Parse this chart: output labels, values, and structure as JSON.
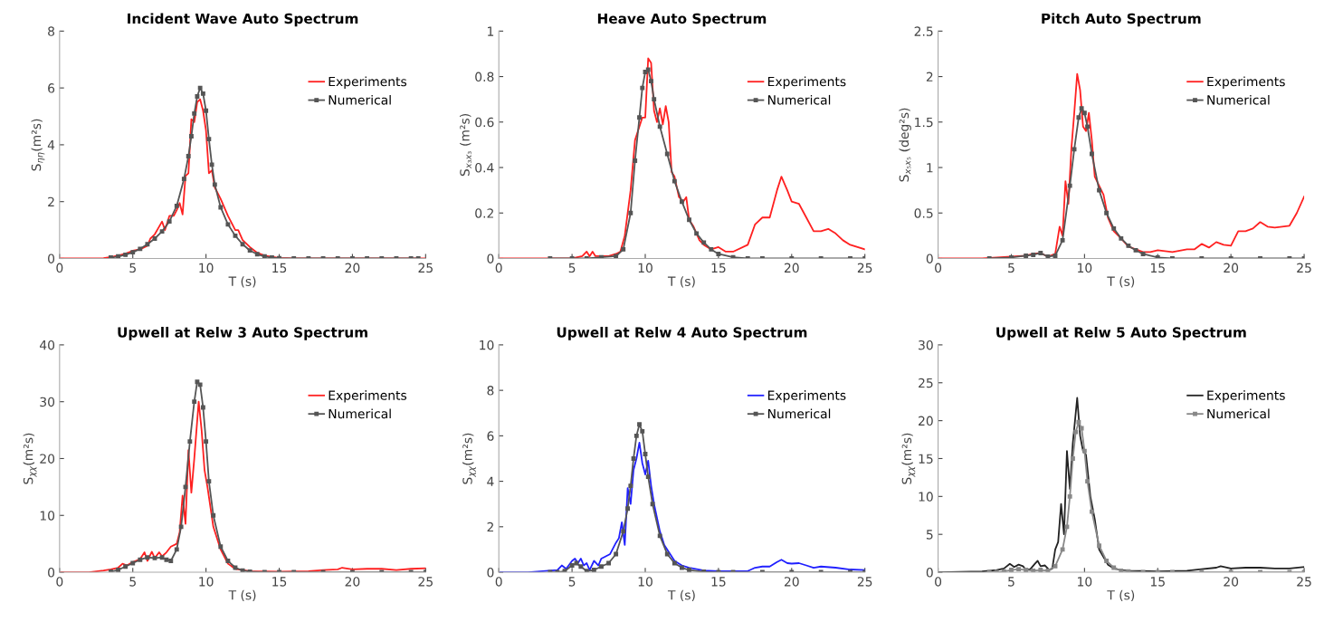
{
  "chart_data": [
    {
      "type": "line",
      "title": "Incident Wave Auto Spectrum",
      "xlabel": "T (s)",
      "ylabel": "S$_{ηη}$(m²s)",
      "xlim": [
        0,
        25
      ],
      "xticks": [
        0,
        5,
        10,
        15,
        20,
        25
      ],
      "ylim": [
        0,
        8
      ],
      "yticks": [
        0,
        2,
        4,
        6,
        8
      ],
      "grid": false,
      "legend": "top right",
      "series": [
        {
          "name": "Experiments",
          "color": "#ff2020",
          "marker": "none",
          "x": [
            0,
            2,
            3,
            3.5,
            4,
            4.5,
            5,
            5.5,
            6,
            6.2,
            6.5,
            7,
            7.2,
            7.5,
            7.8,
            8,
            8.2,
            8.4,
            8.6,
            8.8,
            9,
            9.2,
            9.4,
            9.6,
            9.8,
            10,
            10.2,
            10.4,
            10.6,
            11,
            11.5,
            12,
            12.2,
            12.5,
            13,
            13.5,
            14,
            15,
            16,
            18,
            20,
            25
          ],
          "values": [
            0,
            0,
            0.01,
            0.05,
            0.1,
            0.17,
            0.27,
            0.32,
            0.45,
            0.7,
            0.85,
            1.3,
            1.0,
            1.5,
            1.5,
            1.7,
            1.95,
            1.55,
            2.9,
            3.0,
            4.9,
            4.8,
            5.5,
            5.6,
            5.2,
            4.5,
            3.0,
            3.1,
            2.5,
            2.1,
            1.5,
            1.0,
            1.0,
            0.65,
            0.4,
            0.2,
            0.1,
            0.02,
            0,
            0,
            0,
            0
          ]
        },
        {
          "name": "Numerical",
          "color": "#555555",
          "marker": "square",
          "x": [
            3.5,
            4,
            4.5,
            5,
            5.5,
            6,
            6.5,
            7,
            7.5,
            8,
            8.5,
            8.8,
            9,
            9.2,
            9.4,
            9.6,
            9.8,
            10,
            10.2,
            10.4,
            10.6,
            11,
            11.5,
            12,
            12.5,
            13,
            13.5,
            14,
            14.5,
            15,
            16,
            17,
            18,
            19,
            20,
            21,
            22,
            23,
            24,
            24.5
          ],
          "values": [
            0.03,
            0.07,
            0.13,
            0.22,
            0.34,
            0.5,
            0.7,
            0.95,
            1.3,
            1.85,
            2.8,
            3.6,
            4.3,
            5.1,
            5.7,
            6.0,
            5.8,
            5.2,
            4.2,
            3.3,
            2.6,
            1.8,
            1.2,
            0.8,
            0.5,
            0.28,
            0.15,
            0.07,
            0.03,
            0.01,
            0,
            0,
            0,
            0,
            0,
            0,
            0,
            0,
            0,
            0
          ]
        }
      ]
    },
    {
      "type": "line",
      "title": "Heave Auto Spectrum",
      "xlabel": "T (s)",
      "ylabel": "S$_{x₃x₃}$ (m²s)",
      "xlim": [
        0,
        25
      ],
      "xticks": [
        0,
        5,
        10,
        15,
        20,
        25
      ],
      "ylim": [
        0,
        1
      ],
      "yticks": [
        0,
        0.2,
        0.4,
        0.6,
        0.8,
        1
      ],
      "grid": false,
      "legend": "top right",
      "series": [
        {
          "name": "Experiments",
          "color": "#ff2020",
          "marker": "none",
          "x": [
            0,
            5,
            5.7,
            6,
            6.2,
            6.4,
            6.6,
            7,
            7.5,
            8,
            8.3,
            8.6,
            9,
            9.3,
            9.6,
            9.8,
            10,
            10.2,
            10.4,
            10.6,
            10.8,
            11,
            11.2,
            11.4,
            11.6,
            11.8,
            12,
            12.3,
            12.6,
            12.8,
            13,
            13.3,
            13.7,
            14,
            14.5,
            15,
            15.5,
            16,
            17,
            17.5,
            18,
            18.5,
            19,
            19.3,
            19.7,
            20,
            20.5,
            21,
            21.5,
            22,
            22.5,
            23,
            23.5,
            24,
            25
          ],
          "values": [
            0,
            0,
            0.01,
            0.03,
            0.01,
            0.03,
            0.01,
            0.01,
            0.01,
            0.02,
            0.03,
            0.1,
            0.3,
            0.52,
            0.58,
            0.62,
            0.62,
            0.88,
            0.86,
            0.65,
            0.6,
            0.66,
            0.59,
            0.67,
            0.6,
            0.38,
            0.36,
            0.27,
            0.25,
            0.27,
            0.17,
            0.14,
            0.08,
            0.06,
            0.04,
            0.05,
            0.03,
            0.03,
            0.06,
            0.15,
            0.18,
            0.18,
            0.3,
            0.36,
            0.3,
            0.25,
            0.24,
            0.18,
            0.12,
            0.12,
            0.13,
            0.11,
            0.08,
            0.06,
            0.04
          ]
        },
        {
          "name": "Numerical",
          "color": "#555555",
          "marker": "square",
          "x": [
            3.5,
            5,
            6,
            7,
            8,
            8.5,
            9,
            9.3,
            9.6,
            9.8,
            10,
            10.2,
            10.4,
            10.6,
            11,
            11.5,
            12,
            12.5,
            13,
            13.5,
            14,
            14.5,
            15,
            16,
            17,
            18,
            20,
            22,
            24,
            25
          ],
          "values": [
            0,
            0,
            0,
            0.005,
            0.01,
            0.04,
            0.2,
            0.43,
            0.62,
            0.75,
            0.82,
            0.83,
            0.78,
            0.7,
            0.58,
            0.46,
            0.34,
            0.25,
            0.17,
            0.11,
            0.07,
            0.04,
            0.02,
            0.005,
            0,
            0,
            0,
            0,
            0,
            0
          ]
        }
      ]
    },
    {
      "type": "line",
      "title": "Pitch Auto Spectrum",
      "xlabel": "T (s)",
      "ylabel": "S$_{x₅x₅}$ (deg²s)",
      "xlim": [
        0,
        25
      ],
      "xticks": [
        0,
        5,
        10,
        15,
        20,
        25
      ],
      "ylim": [
        0,
        2.5
      ],
      "yticks": [
        0,
        0.5,
        1,
        1.5,
        2,
        2.5
      ],
      "grid": false,
      "legend": "top right",
      "series": [
        {
          "name": "Experiments",
          "color": "#ff2020",
          "marker": "none",
          "x": [
            0,
            3,
            6,
            6.5,
            7,
            7.5,
            8,
            8.3,
            8.5,
            8.7,
            8.9,
            9.1,
            9.3,
            9.5,
            9.7,
            9.9,
            10.1,
            10.3,
            10.5,
            10.7,
            11,
            11.3,
            11.6,
            12,
            12.5,
            13,
            13.5,
            14,
            14.5,
            15,
            16,
            17,
            17.5,
            18,
            18.5,
            19,
            19.5,
            20,
            20.5,
            21,
            21.5,
            22,
            22.5,
            23,
            24,
            24.5,
            25
          ],
          "values": [
            0,
            0,
            0.03,
            0.05,
            0.06,
            0.02,
            0.05,
            0.35,
            0.25,
            0.85,
            0.6,
            1.2,
            1.6,
            2.03,
            1.85,
            1.45,
            1.4,
            1.6,
            1.3,
            0.9,
            0.8,
            0.7,
            0.45,
            0.3,
            0.22,
            0.13,
            0.1,
            0.07,
            0.07,
            0.09,
            0.07,
            0.1,
            0.1,
            0.16,
            0.12,
            0.18,
            0.15,
            0.14,
            0.3,
            0.3,
            0.33,
            0.4,
            0.35,
            0.34,
            0.36,
            0.5,
            0.68
          ]
        },
        {
          "name": "Numerical",
          "color": "#555555",
          "marker": "square",
          "x": [
            3.5,
            5,
            6,
            6.5,
            7,
            7.5,
            8,
            8.5,
            9,
            9.3,
            9.6,
            9.8,
            10,
            10.2,
            10.5,
            11,
            11.5,
            12,
            12.5,
            13,
            13.5,
            14,
            15,
            16,
            18,
            20,
            22,
            24,
            25
          ],
          "values": [
            0,
            0.01,
            0.03,
            0.04,
            0.06,
            0.02,
            0.03,
            0.2,
            0.8,
            1.2,
            1.55,
            1.65,
            1.6,
            1.45,
            1.15,
            0.75,
            0.5,
            0.33,
            0.22,
            0.14,
            0.09,
            0.05,
            0.01,
            0,
            0,
            0,
            0,
            0,
            0
          ]
        }
      ]
    },
    {
      "type": "line",
      "title": "Upwell at Relw 3 Auto Spectrum",
      "xlabel": "T (s)",
      "ylabel": "S$_{χχ}$(m²s)",
      "xlim": [
        0,
        25
      ],
      "xticks": [
        0,
        5,
        10,
        15,
        20,
        25
      ],
      "ylim": [
        0,
        40
      ],
      "yticks": [
        0,
        10,
        20,
        30,
        40
      ],
      "grid": false,
      "legend": "top right",
      "series": [
        {
          "name": "Experiments",
          "color": "#ff2020",
          "marker": "none",
          "x": [
            0,
            2,
            3,
            3.5,
            4,
            4.3,
            4.6,
            5,
            5.5,
            5.8,
            6,
            6.3,
            6.5,
            6.8,
            7,
            7.3,
            7.6,
            8,
            8.2,
            8.4,
            8.6,
            8.8,
            9,
            9.2,
            9.5,
            9.7,
            9.9,
            10.1,
            10.5,
            11,
            11.5,
            12,
            13,
            15,
            17,
            18,
            19,
            19.3,
            20,
            21,
            22,
            23,
            24,
            25
          ],
          "values": [
            0,
            0,
            0.3,
            0.5,
            0.8,
            1.5,
            1.2,
            1.8,
            2.3,
            3.5,
            2.0,
            3.6,
            2.5,
            3.5,
            2.8,
            3.5,
            4.5,
            5,
            7,
            13.5,
            8.5,
            21.5,
            14,
            20,
            30,
            25,
            18,
            15,
            8,
            4,
            1.5,
            0.6,
            0.2,
            0.1,
            0.2,
            0.4,
            0.5,
            0.8,
            0.5,
            0.6,
            0.6,
            0.4,
            0.6,
            0.7
          ]
        },
        {
          "name": "Numerical",
          "color": "#555555",
          "marker": "square",
          "x": [
            3.5,
            4,
            4.5,
            5,
            5.5,
            6,
            6.5,
            7,
            7.3,
            7.6,
            8,
            8.3,
            8.6,
            8.9,
            9.2,
            9.4,
            9.6,
            9.8,
            10,
            10.2,
            10.5,
            11,
            11.5,
            12,
            12.5,
            13,
            14,
            15,
            16,
            18,
            20,
            22,
            24,
            25
          ],
          "values": [
            0.1,
            0.4,
            1.0,
            1.6,
            2.2,
            2.6,
            2.5,
            2.6,
            2.2,
            2.0,
            4,
            8,
            15,
            23,
            30,
            33.5,
            33,
            29,
            23,
            16,
            10,
            4.5,
            2,
            0.8,
            0.3,
            0.1,
            0,
            0,
            0,
            0,
            0,
            0,
            0,
            0
          ]
        }
      ]
    },
    {
      "type": "line",
      "title": "Upwell at Relw 4 Auto Spectrum",
      "xlabel": "T (s)",
      "ylabel": "S$_{χχ}$(m²s)",
      "xlim": [
        0,
        25
      ],
      "xticks": [
        0,
        5,
        10,
        15,
        20,
        25
      ],
      "ylim": [
        0,
        10
      ],
      "yticks": [
        0,
        2,
        4,
        6,
        8,
        10
      ],
      "grid": false,
      "legend": "top right",
      "series": [
        {
          "name": "Experiments",
          "color": "#2020ff",
          "marker": "none",
          "x": [
            0,
            2,
            3,
            4,
            4.3,
            4.6,
            5,
            5.2,
            5.4,
            5.6,
            5.8,
            6,
            6.2,
            6.5,
            6.8,
            7,
            7.3,
            7.6,
            8,
            8.2,
            8.4,
            8.6,
            8.8,
            9,
            9.2,
            9.4,
            9.6,
            9.8,
            10,
            10.2,
            10.4,
            10.6,
            11,
            11.3,
            11.6,
            12,
            12.5,
            13,
            14,
            15,
            17,
            17.5,
            18,
            18.5,
            19,
            19.3,
            19.7,
            20,
            20.5,
            21,
            21.5,
            22,
            23,
            24,
            25
          ],
          "values": [
            0,
            0,
            0.05,
            0.1,
            0.3,
            0.15,
            0.5,
            0.6,
            0.4,
            0.6,
            0.3,
            0.4,
            0.1,
            0.5,
            0.3,
            0.6,
            0.7,
            0.8,
            1.3,
            1.5,
            2.2,
            1.2,
            3.7,
            3.0,
            4.5,
            5.0,
            5.7,
            4.8,
            4.3,
            4.9,
            3.8,
            3.0,
            1.8,
            1.2,
            0.9,
            0.5,
            0.3,
            0.2,
            0.08,
            0.05,
            0.05,
            0.2,
            0.25,
            0.25,
            0.45,
            0.55,
            0.4,
            0.38,
            0.4,
            0.3,
            0.2,
            0.25,
            0.2,
            0.12,
            0.1
          ]
        },
        {
          "name": "Numerical",
          "color": "#555555",
          "marker": "square",
          "x": [
            3.5,
            4,
            4.5,
            5,
            5.3,
            5.6,
            6,
            6.5,
            7,
            7.5,
            8,
            8.5,
            8.8,
            9,
            9.2,
            9.4,
            9.6,
            9.8,
            10,
            10.2,
            10.5,
            11,
            11.5,
            12,
            12.5,
            13,
            14,
            15,
            16,
            18,
            20,
            22,
            24,
            25
          ],
          "values": [
            0,
            0,
            0.05,
            0.3,
            0.4,
            0.25,
            0.05,
            0.1,
            0.25,
            0.4,
            0.8,
            1.8,
            2.8,
            3.8,
            5.0,
            6.0,
            6.5,
            6.2,
            5.2,
            4.2,
            3.0,
            1.6,
            0.8,
            0.4,
            0.2,
            0.1,
            0.02,
            0,
            0,
            0,
            0,
            0,
            0,
            0
          ]
        }
      ]
    },
    {
      "type": "line",
      "title": "Upwell at Relw 5 Auto Spectrum",
      "xlabel": "T (s)",
      "ylabel": "S$_{χχ}$(m²s)",
      "xlim": [
        0,
        25
      ],
      "xticks": [
        0,
        5,
        10,
        15,
        20,
        25
      ],
      "ylim": [
        0,
        30
      ],
      "yticks": [
        0,
        5,
        10,
        15,
        20,
        25,
        30
      ],
      "grid": false,
      "legend": "top right",
      "series": [
        {
          "name": "Experiments",
          "color": "#222222",
          "marker": "none",
          "x": [
            0,
            3,
            4,
            4.5,
            4.9,
            5.2,
            5.5,
            5.8,
            6,
            6.3,
            6.6,
            6.8,
            7,
            7.3,
            7.6,
            7.8,
            8,
            8.2,
            8.4,
            8.6,
            8.8,
            9,
            9.2,
            9.5,
            9.7,
            9.9,
            10.1,
            10.4,
            10.7,
            11,
            11.3,
            11.6,
            12,
            12.5,
            13,
            15,
            17,
            18,
            19,
            19.3,
            20,
            21,
            22,
            23,
            24,
            25
          ],
          "values": [
            0,
            0.1,
            0.3,
            0.5,
            1.1,
            0.7,
            1.0,
            0.8,
            0.3,
            0.4,
            1.1,
            1.5,
            0.8,
            0.9,
            0.3,
            0.5,
            3,
            4,
            9,
            5,
            16,
            11,
            17,
            23,
            18,
            16,
            15.5,
            10,
            7,
            3,
            2,
            1,
            0.5,
            0.3,
            0.2,
            0.1,
            0.2,
            0.4,
            0.6,
            0.8,
            0.5,
            0.6,
            0.6,
            0.5,
            0.5,
            0.7
          ]
        },
        {
          "name": "Numerical",
          "color": "#888888",
          "marker": "square",
          "x": [
            3.5,
            4,
            4.5,
            5,
            5.5,
            6,
            6.5,
            7,
            7.5,
            8,
            8.5,
            8.8,
            9,
            9.2,
            9.4,
            9.6,
            9.8,
            10,
            10.2,
            10.5,
            11,
            11.5,
            12,
            12.5,
            13,
            14,
            15,
            16,
            18,
            20,
            22,
            24,
            25
          ],
          "values": [
            0,
            0,
            0.1,
            0.3,
            0.4,
            0.3,
            0.2,
            0.3,
            0.2,
            0.8,
            3,
            6,
            10,
            15,
            18.5,
            19.8,
            19,
            16,
            12,
            8,
            3.5,
            1.5,
            0.6,
            0.2,
            0.1,
            0,
            0,
            0,
            0,
            0,
            0,
            0,
            0
          ]
        }
      ]
    }
  ]
}
